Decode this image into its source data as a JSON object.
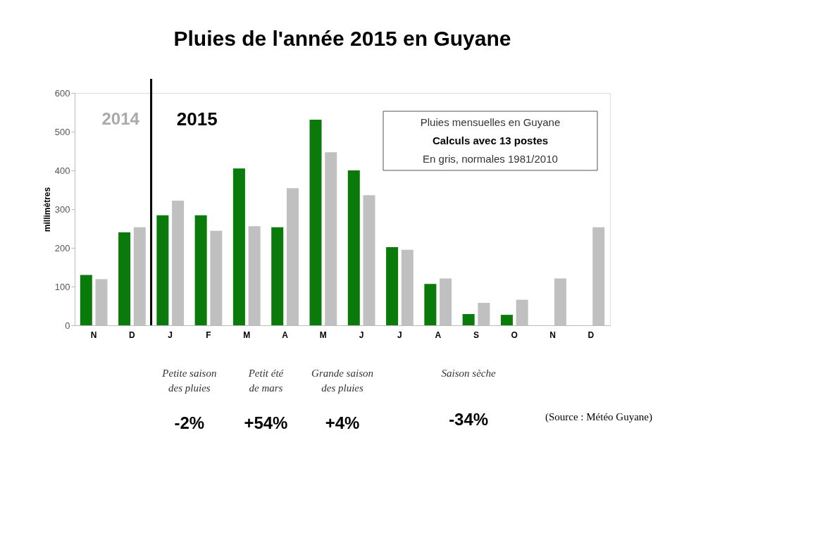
{
  "chart_data": {
    "type": "bar",
    "title": "Pluies de l'année 2015 en Guyane",
    "ylabel": "millimètres",
    "categories": [
      "N",
      "D",
      "J",
      "F",
      "M",
      "A",
      "M",
      "J",
      "J",
      "A",
      "S",
      "O",
      "N",
      "D"
    ],
    "series": [
      {
        "color": "#0a7a0a",
        "values": [
          130,
          240,
          284,
          284,
          405,
          253,
          531,
          400,
          202,
          107,
          29,
          27,
          null,
          null
        ]
      },
      {
        "color": "#c0c0c0",
        "values": [
          119,
          253,
          322,
          244,
          256,
          354,
          447,
          336,
          195,
          121,
          58,
          66,
          121,
          253
        ]
      }
    ],
    "ylim": [
      0,
      600
    ],
    "yticks": [
      0,
      100,
      200,
      300,
      400,
      500,
      600
    ],
    "grid": false,
    "legend": false,
    "annotations": [
      "2014",
      "2015",
      "Pluies mensuelles en Guyane",
      "Calculs avec 13 postes",
      "En gris, normales 1981/2010",
      "Petite saison\ndes pluies",
      "Petit été\nde mars",
      "Grande saison\ndes pluies",
      "Saison sèche",
      "-2%",
      "+54%",
      "+4%",
      "-34%",
      "(Source : Météo Guyane)"
    ]
  }
}
